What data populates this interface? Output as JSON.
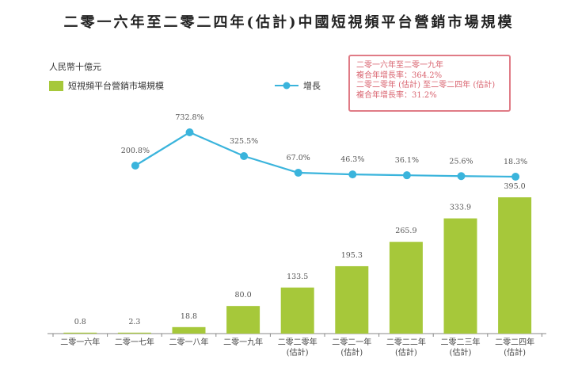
{
  "chart_data": {
    "type": "bar+line",
    "title": "二零一六年至二零二四年(估計)中國短視頻平台營銷市場規模",
    "ylabel": "人民幣十億元",
    "categories": [
      "二零一六年",
      "二零一七年",
      "二零一八年",
      "二零一九年",
      "二零二零年\n(估計)",
      "二零二一年\n(估計)",
      "二零二二年\n(估計)",
      "二零二三年\n(估計)",
      "二零二四年\n(估計)"
    ],
    "category_lines": [
      [
        "二零一六年"
      ],
      [
        "二零一七年"
      ],
      [
        "二零一八年"
      ],
      [
        "二零一九年"
      ],
      [
        "二零二零年",
        "(估計)"
      ],
      [
        "二零二一年",
        "(估計)"
      ],
      [
        "二零二二年",
        "(估計)"
      ],
      [
        "二零二三年",
        "(估計)"
      ],
      [
        "二零二四年",
        "(估計)"
      ]
    ],
    "series": [
      {
        "name": "短視頻平台營銷市場規模",
        "type": "bar",
        "color": "#a6c83a",
        "values": [
          0.8,
          2.3,
          18.8,
          80.0,
          133.5,
          195.3,
          265.9,
          333.9,
          395.0
        ],
        "labels": [
          "0.8",
          "2.3",
          "18.8",
          "80.0",
          "133.5",
          "195.3",
          "265.9",
          "333.9",
          "395.0"
        ]
      },
      {
        "name": "增長",
        "type": "line",
        "color": "#3ab4dc",
        "values": [
          null,
          200.8,
          732.8,
          325.5,
          67.0,
          46.3,
          36.1,
          25.6,
          18.3
        ],
        "labels": [
          null,
          "200.8%",
          "732.8%",
          "325.5%",
          "67.0%",
          "46.3%",
          "36.1%",
          "25.6%",
          "18.3%"
        ]
      }
    ],
    "ylim": [
      0,
      400
    ]
  },
  "legend": {
    "unit": "人民幣十億元",
    "bar_label": "短視頻平台營銷市場規模",
    "line_label": "增長"
  },
  "cagr_box": {
    "line1": "二零一六年至二零一九年",
    "line2": "複合年增長率：364.2%",
    "line3": "二零二零年 (估計) 至二零二四年 (估計)",
    "line4": "複合年增長率：31.2%",
    "border_color": "#e07b86",
    "text_color": "#d9636f"
  }
}
